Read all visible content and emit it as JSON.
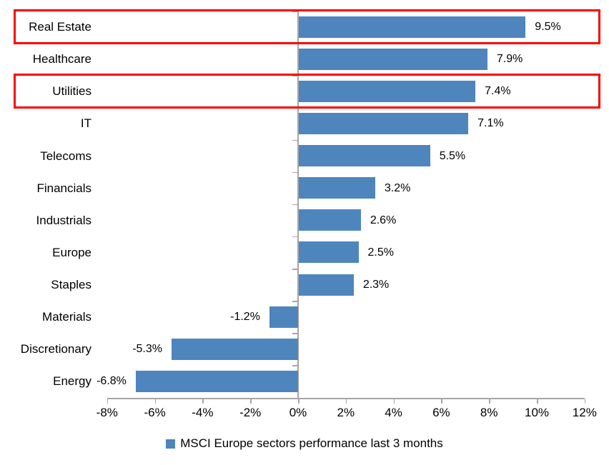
{
  "chart_data": {
    "type": "bar",
    "orientation": "horizontal",
    "title": "",
    "xlabel": "",
    "ylabel": "",
    "categories": [
      "Real Estate",
      "Healthcare",
      "Utilities",
      "IT",
      "Telecoms",
      "Financials",
      "Industrials",
      "Europe",
      "Staples",
      "Materials",
      "Discretionary",
      "Energy"
    ],
    "values": [
      9.5,
      7.9,
      7.4,
      7.1,
      5.5,
      3.2,
      2.6,
      2.5,
      2.3,
      -1.2,
      -5.3,
      -6.8
    ],
    "data_labels": [
      "9.5%",
      "7.9%",
      "7.4%",
      "7.1%",
      "5.5%",
      "3.2%",
      "2.6%",
      "2.5%",
      "2.3%",
      "-1.2%",
      "-5.3%",
      "-6.8%"
    ],
    "highlighted_categories": [
      "Real Estate",
      "Utilities"
    ],
    "xlim": [
      -8,
      12
    ],
    "x_tick_interval": 2,
    "x_tick_labels": [
      "-8%",
      "-6%",
      "-4%",
      "-2%",
      "0%",
      "2%",
      "4%",
      "6%",
      "8%",
      "10%",
      "12%"
    ],
    "grid": "off",
    "legend": "MSCI Europe sectors performance last 3 months",
    "legend_position": "bottom-center",
    "colors": {
      "bar": "#4e85bd",
      "highlight_box": "#fe0000",
      "axis": "#a6a6a6",
      "text": "#000000",
      "background": "#ffffff"
    }
  }
}
